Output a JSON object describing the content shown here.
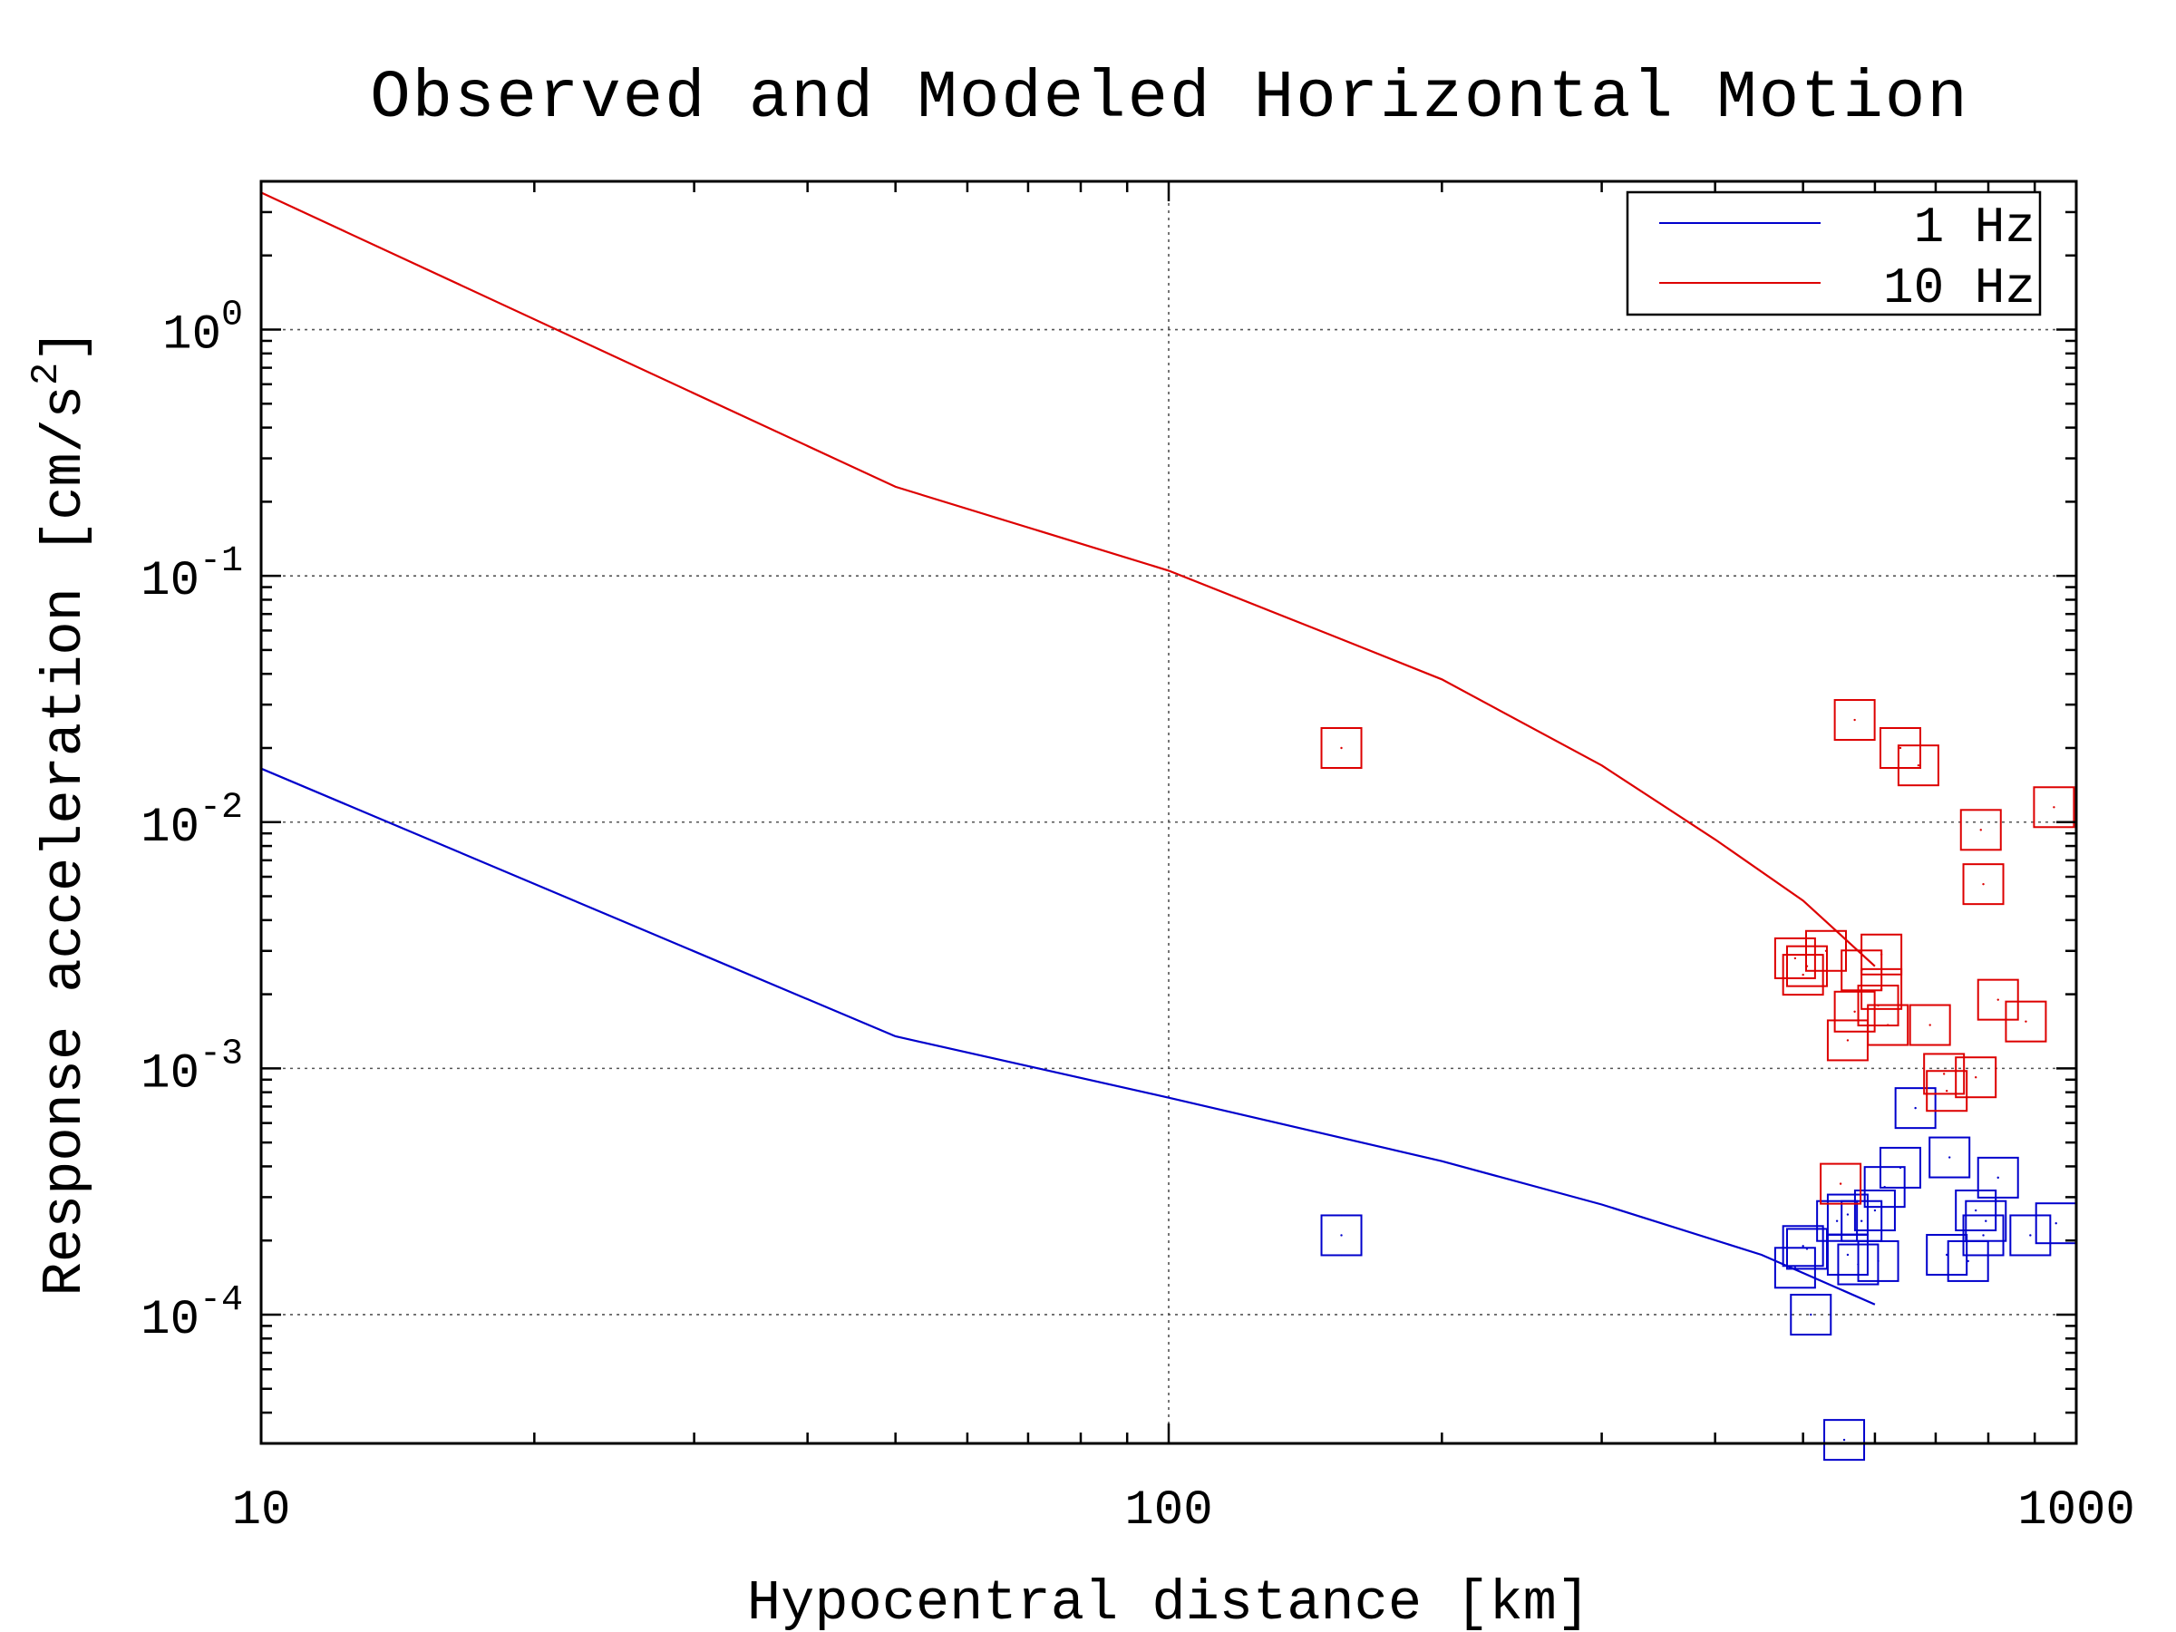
{
  "chart_data": {
    "type": "scatter",
    "title": "Observed and Modeled Horizontal Motion",
    "xlabel": "Hypocentral distance [km]",
    "ylabel": "Response acceleration [cm/s^2]",
    "ylabel_parts": {
      "main": "Response acceleration [cm/s",
      "sup": "2",
      "end": "]"
    },
    "xscale": "log",
    "yscale": "log",
    "xlim": [
      10,
      1000
    ],
    "ylim": [
      3e-05,
      4
    ],
    "grid": true,
    "legend_position": "top-right",
    "x_ticks": [
      {
        "value": 10,
        "label": "10"
      },
      {
        "value": 100,
        "label": "100"
      },
      {
        "value": 1000,
        "label": "1000"
      }
    ],
    "y_ticks": [
      {
        "value": 0.0001,
        "base": "10",
        "exp": "-4"
      },
      {
        "value": 0.001,
        "base": "10",
        "exp": "-3"
      },
      {
        "value": 0.01,
        "base": "10",
        "exp": "-2"
      },
      {
        "value": 0.1,
        "base": "10",
        "exp": "-1"
      },
      {
        "value": 1,
        "base": "10",
        "exp": "0"
      }
    ],
    "series": [
      {
        "name": "1 Hz",
        "color": "#0000cc",
        "model_curve": [
          [
            10,
            0.0165
          ],
          [
            50,
            0.00135
          ],
          [
            100,
            0.00076
          ],
          [
            200,
            0.00042
          ],
          [
            300,
            0.00028
          ],
          [
            450,
            0.000175
          ],
          [
            600,
            0.00011
          ]
        ],
        "observed": [
          [
            155,
            0.00021
          ],
          [
            665,
            0.00069
          ],
          [
            725,
            0.000435
          ],
          [
            640,
            0.000395
          ],
          [
            820,
            0.00036
          ],
          [
            615,
            0.00033
          ],
          [
            600,
            0.000265
          ],
          [
            560,
            0.000255
          ],
          [
            580,
            0.00024
          ],
          [
            545,
            0.00024
          ],
          [
            950,
            0.000235
          ],
          [
            775,
            0.000265
          ],
          [
            795,
            0.00024
          ],
          [
            890,
            0.00021
          ],
          [
            790,
            0.00021
          ],
          [
            500,
            0.00019
          ],
          [
            505,
            0.000185
          ],
          [
            720,
            0.000175
          ],
          [
            760,
            0.000165
          ],
          [
            560,
            0.000175
          ],
          [
            605,
            0.000165
          ],
          [
            575,
            0.00016
          ],
          [
            490,
            0.000155
          ],
          [
            510,
            0.0001
          ],
          [
            555,
            3.1e-05
          ]
        ]
      },
      {
        "name": "10 Hz",
        "color": "#dd0000",
        "model_curve": [
          [
            10,
            3.6
          ],
          [
            50,
            0.23
          ],
          [
            100,
            0.105
          ],
          [
            150,
            0.058
          ],
          [
            200,
            0.038
          ],
          [
            300,
            0.017
          ],
          [
            400,
            0.0085
          ],
          [
            500,
            0.0048
          ],
          [
            600,
            0.0026
          ]
        ],
        "observed": [
          [
            155,
            0.02
          ],
          [
            570,
            0.026
          ],
          [
            640,
            0.02
          ],
          [
            670,
            0.017
          ],
          [
            945,
            0.0115
          ],
          [
            785,
            0.0093
          ],
          [
            790,
            0.0056
          ],
          [
            530,
            0.003
          ],
          [
            610,
            0.0029
          ],
          [
            490,
            0.0028
          ],
          [
            505,
            0.0026
          ],
          [
            500,
            0.0024
          ],
          [
            580,
            0.0025
          ],
          [
            610,
            0.0021
          ],
          [
            605,
            0.0018
          ],
          [
            570,
            0.0017
          ],
          [
            820,
            0.0019
          ],
          [
            880,
            0.00155
          ],
          [
            690,
            0.0015
          ],
          [
            620,
            0.0015
          ],
          [
            560,
            0.0013
          ],
          [
            715,
            0.00095
          ],
          [
            775,
            0.00092
          ],
          [
            720,
            0.00081
          ],
          [
            550,
            0.00034
          ]
        ]
      }
    ]
  }
}
